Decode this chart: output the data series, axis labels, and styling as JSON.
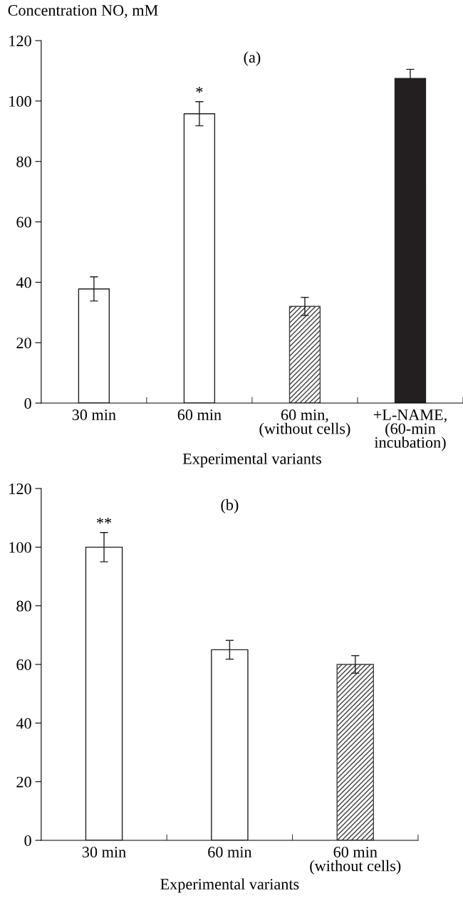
{
  "chart_data": [
    {
      "type": "bar",
      "title": "(a)",
      "ylabel": "Concentration NO, mM",
      "xlabel": "Experimental variants",
      "categories": [
        "30 min",
        "60 min",
        "60 min,\n(without cells)",
        "+L-NAME,\n(60-min\nincubation)"
      ],
      "values": [
        37.8,
        95.8,
        32,
        107.5
      ],
      "errors": [
        4,
        4,
        3,
        3
      ],
      "colors": [
        "#ffffff",
        "#ffffff",
        "#404040",
        "#231f20"
      ],
      "ylim": [
        0,
        120
      ],
      "yticks": [
        0,
        20,
        40,
        60,
        80,
        100,
        120
      ],
      "annotations": [
        {
          "text": "*",
          "x": "60 min",
          "y": 99.8
        }
      ],
      "grid": false,
      "legend": false
    },
    {
      "type": "bar",
      "title": "(b)",
      "xlabel": "Experimental variants",
      "categories": [
        "30 min",
        "60 min",
        "60 min\n(without cells)"
      ],
      "values": [
        100,
        65,
        60
      ],
      "errors": [
        5,
        3.2,
        3
      ],
      "colors": [
        "#ffffff",
        "#ffffff",
        "#404040"
      ],
      "ylim": [
        0,
        120
      ],
      "yticks": [
        0,
        20,
        40,
        60,
        80,
        100,
        120
      ],
      "annotations": [
        {
          "text": "**",
          "x": "30 min",
          "y": 105
        }
      ],
      "grid": false,
      "legend": false
    }
  ]
}
